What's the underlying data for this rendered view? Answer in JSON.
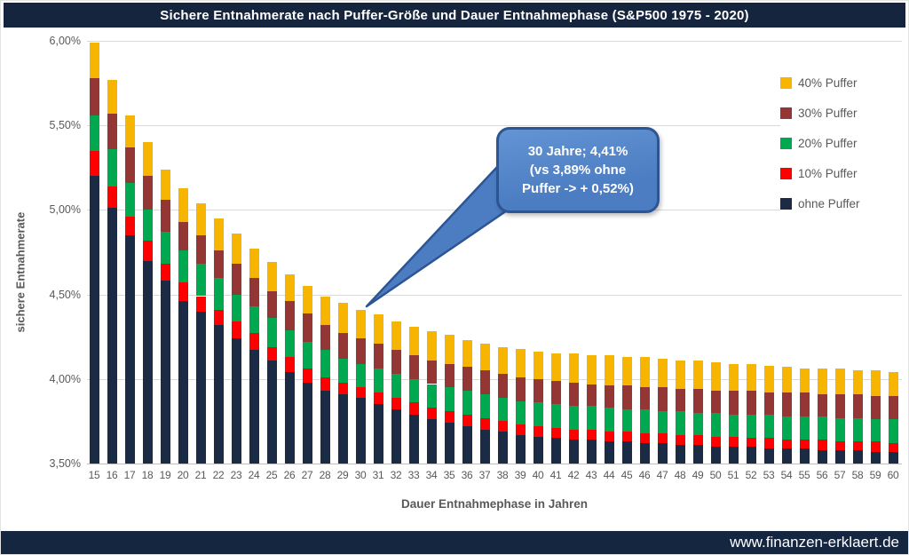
{
  "title": "Sichere Entnahmerate nach Puffer-Größe und Dauer Entnahmephase (S&P500 1975 - 2020)",
  "footer": {
    "url": "www.finanzen-erklaert.de"
  },
  "callout": {
    "lines": [
      "30 Jahre; 4,41%",
      "(vs 3,89% ohne",
      "Puffer -> + 0,52%)"
    ]
  },
  "colors": {
    "title_bar": "#16253E",
    "footer_bar": "#152640",
    "gridline": "#D9D9D9",
    "axis_text": "#595959",
    "callout_fill": "#4C7DC2",
    "callout_border": "#2D5593"
  },
  "chart_data": {
    "type": "bar",
    "subtype": "stacked-overlay (each segment top = safe withdrawal rate for that buffer level)",
    "title": "Sichere Entnahmerate nach Puffer-Größe und Dauer Entnahmephase (S&P500 1975 - 2020)",
    "xlabel": "Dauer Entnahmephase in Jahren",
    "ylabel": "sichere Entnahmerate",
    "ylim": [
      3.5,
      6.0
    ],
    "grid": true,
    "legend_position": "right-top",
    "y_ticks": [
      {
        "label": "6,00%",
        "value": 6.0
      },
      {
        "label": "5,50%",
        "value": 5.5
      },
      {
        "label": "5,00%",
        "value": 5.0
      },
      {
        "label": "4,50%",
        "value": 4.5
      },
      {
        "label": "4,00%",
        "value": 4.0
      },
      {
        "label": "3,50%",
        "value": 3.5
      }
    ],
    "categories": [
      15,
      16,
      17,
      18,
      19,
      20,
      21,
      22,
      23,
      24,
      25,
      26,
      27,
      28,
      29,
      30,
      31,
      32,
      33,
      34,
      35,
      36,
      37,
      38,
      39,
      40,
      41,
      42,
      43,
      44,
      45,
      46,
      47,
      48,
      49,
      50,
      51,
      52,
      53,
      54,
      55,
      56,
      57,
      58,
      59,
      60
    ],
    "series": [
      {
        "name": "ohne Puffer",
        "color": "#1C2B45",
        "values": [
          5.2,
          5.01,
          4.85,
          4.7,
          4.58,
          4.46,
          4.4,
          4.32,
          4.24,
          4.17,
          4.11,
          4.04,
          3.98,
          3.93,
          3.91,
          3.89,
          3.85,
          3.82,
          3.79,
          3.76,
          3.74,
          3.72,
          3.7,
          3.69,
          3.67,
          3.66,
          3.65,
          3.64,
          3.64,
          3.63,
          3.63,
          3.62,
          3.62,
          3.61,
          3.61,
          3.6,
          3.6,
          3.6,
          3.59,
          3.59,
          3.59,
          3.58,
          3.58,
          3.58,
          3.57,
          3.57
        ]
      },
      {
        "name": "10% Puffer",
        "color": "#FF0000",
        "values": [
          5.35,
          5.14,
          4.96,
          4.82,
          4.68,
          4.57,
          4.49,
          4.41,
          4.34,
          4.27,
          4.19,
          4.13,
          4.06,
          4.01,
          3.98,
          3.95,
          3.92,
          3.89,
          3.86,
          3.83,
          3.81,
          3.79,
          3.77,
          3.75,
          3.73,
          3.72,
          3.71,
          3.7,
          3.7,
          3.69,
          3.69,
          3.68,
          3.68,
          3.67,
          3.67,
          3.66,
          3.66,
          3.65,
          3.65,
          3.64,
          3.64,
          3.64,
          3.63,
          3.63,
          3.63,
          3.62
        ]
      },
      {
        "name": "20% Puffer",
        "color": "#00A850",
        "values": [
          5.56,
          5.36,
          5.16,
          5.0,
          4.87,
          4.76,
          4.68,
          4.6,
          4.5,
          4.43,
          4.36,
          4.29,
          4.22,
          4.17,
          4.12,
          4.09,
          4.06,
          4.03,
          4.0,
          3.97,
          3.95,
          3.93,
          3.91,
          3.89,
          3.87,
          3.86,
          3.85,
          3.84,
          3.84,
          3.83,
          3.82,
          3.82,
          3.81,
          3.81,
          3.8,
          3.8,
          3.79,
          3.79,
          3.79,
          3.78,
          3.78,
          3.78,
          3.77,
          3.77,
          3.76,
          3.76
        ]
      },
      {
        "name": "30% Puffer",
        "color": "#943634",
        "values": [
          5.78,
          5.57,
          5.37,
          5.2,
          5.06,
          4.93,
          4.85,
          4.76,
          4.68,
          4.6,
          4.52,
          4.46,
          4.39,
          4.32,
          4.27,
          4.24,
          4.21,
          4.17,
          4.14,
          4.11,
          4.09,
          4.07,
          4.05,
          4.03,
          4.01,
          4.0,
          3.99,
          3.98,
          3.97,
          3.96,
          3.96,
          3.95,
          3.95,
          3.94,
          3.94,
          3.93,
          3.93,
          3.93,
          3.92,
          3.92,
          3.92,
          3.91,
          3.91,
          3.91,
          3.9,
          3.9
        ]
      },
      {
        "name": "40% Puffer",
        "color": "#F7B500",
        "values": [
          5.99,
          5.77,
          5.56,
          5.4,
          5.24,
          5.13,
          5.04,
          4.95,
          4.86,
          4.77,
          4.69,
          4.62,
          4.55,
          4.49,
          4.45,
          4.41,
          4.38,
          4.34,
          4.31,
          4.28,
          4.26,
          4.23,
          4.21,
          4.19,
          4.18,
          4.16,
          4.15,
          4.15,
          4.14,
          4.14,
          4.13,
          4.13,
          4.12,
          4.11,
          4.11,
          4.1,
          4.09,
          4.09,
          4.08,
          4.07,
          4.06,
          4.06,
          4.06,
          4.05,
          4.05,
          4.04
        ]
      }
    ],
    "legend": [
      {
        "label": "40% Puffer",
        "color": "#F7B500"
      },
      {
        "label": "30% Puffer",
        "color": "#943634"
      },
      {
        "label": "20% Puffer",
        "color": "#00A850"
      },
      {
        "label": "10% Puffer",
        "color": "#FF0000"
      },
      {
        "label": "ohne Puffer",
        "color": "#1C2B45"
      }
    ],
    "annotation": {
      "text": "30 Jahre; 4,41% (vs 3,89% ohne Puffer -> + 0,52%)",
      "points_to_category": 30
    }
  }
}
